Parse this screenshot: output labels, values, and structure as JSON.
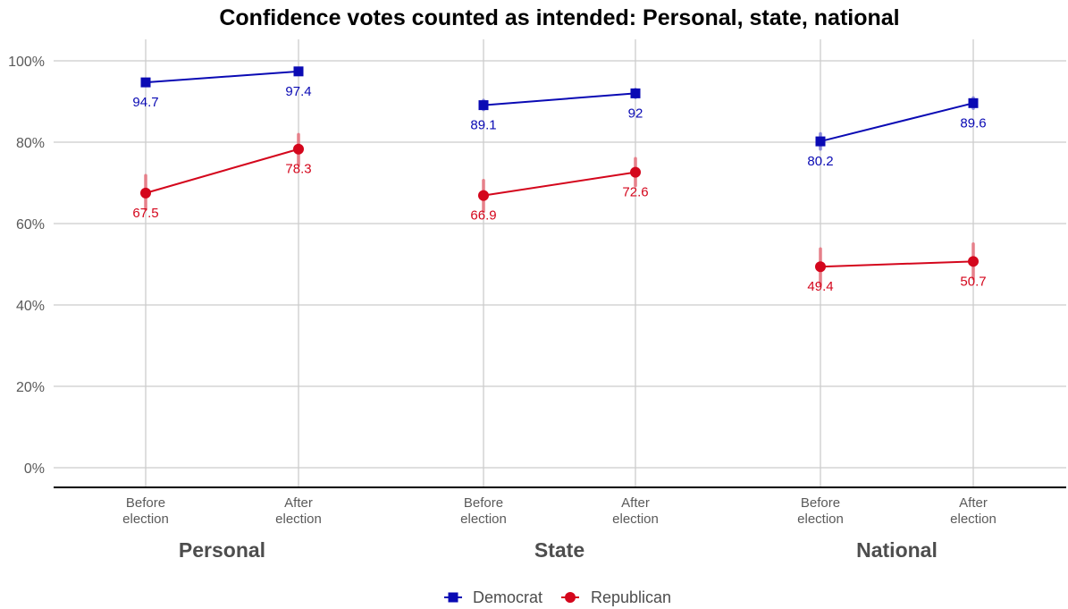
{
  "chart_data": {
    "type": "line",
    "title": "Confidence votes counted as intended: Personal, state, national",
    "ylim": [
      0,
      100
    ],
    "y_ticks": [
      "0%",
      "20%",
      "40%",
      "60%",
      "80%",
      "100%"
    ],
    "y_tick_values": [
      0,
      20,
      40,
      60,
      80,
      100
    ],
    "grid": true,
    "legend_position": "bottom",
    "panels": [
      {
        "label": "Personal",
        "categories": [
          "Before\nelection",
          "After\nelection"
        ],
        "series": [
          {
            "name": "Democrat",
            "values": [
              94.7,
              97.4
            ],
            "labels": [
              "94.7",
              "97.4"
            ],
            "error": [
              [
                94.0,
                95.5
              ],
              [
                96.8,
                98.0
              ]
            ]
          },
          {
            "name": "Republican",
            "values": [
              67.5,
              78.3
            ],
            "labels": [
              "67.5",
              "78.3"
            ],
            "error": [
              [
                63.5,
                71.8
              ],
              [
                74.5,
                81.9
              ]
            ]
          }
        ]
      },
      {
        "label": "State",
        "categories": [
          "Before\nelection",
          "After\nelection"
        ],
        "series": [
          {
            "name": "Democrat",
            "values": [
              89.1,
              92
            ],
            "labels": [
              "89.1",
              "92"
            ],
            "error": [
              [
                88.0,
                90.3
              ],
              [
                91.0,
                93.0
              ]
            ]
          },
          {
            "name": "Republican",
            "values": [
              66.9,
              72.6
            ],
            "labels": [
              "66.9",
              "72.6"
            ],
            "error": [
              [
                63.0,
                70.6
              ],
              [
                69.3,
                76.0
              ]
            ]
          }
        ]
      },
      {
        "label": "National",
        "categories": [
          "Before\nelection",
          "After\nelection"
        ],
        "series": [
          {
            "name": "Democrat",
            "values": [
              80.2,
              89.6
            ],
            "labels": [
              "80.2",
              "89.6"
            ],
            "error": [
              [
                78.3,
                82.1
              ],
              [
                88.3,
                90.9
              ]
            ]
          },
          {
            "name": "Republican",
            "values": [
              49.4,
              50.7
            ],
            "labels": [
              "49.4",
              "50.7"
            ],
            "error": [
              [
                45.0,
                53.8
              ],
              [
                46.5,
                55.0
              ]
            ]
          }
        ]
      }
    ],
    "legend": [
      {
        "name": "Democrat",
        "color": "#0a0ab4",
        "marker": "square"
      },
      {
        "name": "Republican",
        "color": "#d4061c",
        "marker": "circle"
      }
    ],
    "colors": {
      "Democrat": "#0a0ab4",
      "Republican": "#d4061c",
      "Republican_error": "#e6808a",
      "Democrat_error": "#8a8ad8"
    }
  }
}
